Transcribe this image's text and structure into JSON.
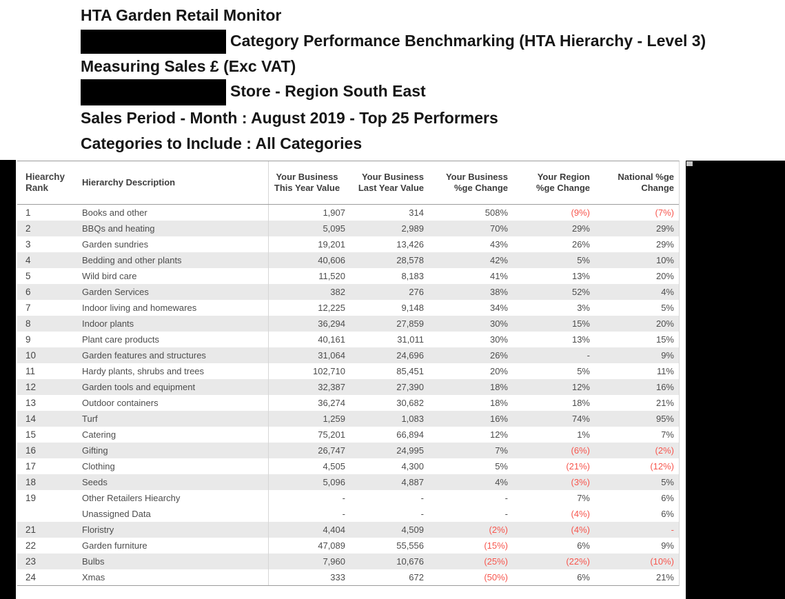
{
  "titles": {
    "line1": "HTA Garden Retail Monitor",
    "line2_text": "Category Performance Benchmarking (HTA Hierarchy - Level 3)",
    "line3": "Measuring Sales £ (Exc VAT)",
    "line4_text": "Store - Region South East",
    "line5": "Sales Period - Month : August 2019 - Top 25 Performers",
    "line6": "Categories to Include : All Categories"
  },
  "colors": {
    "negative_text": "#f7564e",
    "row_stripe": "#e9e9e9",
    "body_text": "#4d4d4d",
    "header_text": "#3d3d3d"
  },
  "table": {
    "columns": [
      {
        "l1": "Hiearchy",
        "l2": "Rank"
      },
      {
        "l1": "Hierarchy Description",
        "l2": ""
      },
      {
        "l1": "Your Business",
        "l2": "This Year Value"
      },
      {
        "l1": "Your Business",
        "l2": "Last Year Value"
      },
      {
        "l1": "Your Business",
        "l2": "%ge Change"
      },
      {
        "l1": "Your Region",
        "l2": "%ge Change"
      },
      {
        "l1": "National %ge",
        "l2": "Change"
      }
    ],
    "rows": [
      {
        "rank": "1",
        "desc": "Books and other",
        "shaded": false,
        "cells": [
          {
            "v": "1,907"
          },
          {
            "v": "314"
          },
          {
            "v": "508%"
          },
          {
            "v": "(9%)",
            "red": true
          },
          {
            "v": "(7%)",
            "red": true
          }
        ]
      },
      {
        "rank": "2",
        "desc": "BBQs and heating",
        "shaded": true,
        "cells": [
          {
            "v": "5,095"
          },
          {
            "v": "2,989"
          },
          {
            "v": "70%"
          },
          {
            "v": "29%"
          },
          {
            "v": "29%"
          }
        ]
      },
      {
        "rank": "3",
        "desc": "Garden sundries",
        "shaded": false,
        "cells": [
          {
            "v": "19,201"
          },
          {
            "v": "13,426"
          },
          {
            "v": "43%"
          },
          {
            "v": "26%"
          },
          {
            "v": "29%"
          }
        ]
      },
      {
        "rank": "4",
        "desc": "Bedding and other plants",
        "shaded": true,
        "cells": [
          {
            "v": "40,606"
          },
          {
            "v": "28,578"
          },
          {
            "v": "42%"
          },
          {
            "v": "5%"
          },
          {
            "v": "10%"
          }
        ]
      },
      {
        "rank": "5",
        "desc": "Wild bird care",
        "shaded": false,
        "cells": [
          {
            "v": "11,520"
          },
          {
            "v": "8,183"
          },
          {
            "v": "41%"
          },
          {
            "v": "13%"
          },
          {
            "v": "20%"
          }
        ]
      },
      {
        "rank": "6",
        "desc": "Garden Services",
        "shaded": true,
        "cells": [
          {
            "v": "382"
          },
          {
            "v": "276"
          },
          {
            "v": "38%"
          },
          {
            "v": "52%"
          },
          {
            "v": "4%"
          }
        ]
      },
      {
        "rank": "7",
        "desc": "Indoor living and homewares",
        "shaded": false,
        "cells": [
          {
            "v": "12,225"
          },
          {
            "v": "9,148"
          },
          {
            "v": "34%"
          },
          {
            "v": "3%"
          },
          {
            "v": "5%"
          }
        ]
      },
      {
        "rank": "8",
        "desc": "Indoor plants",
        "shaded": true,
        "cells": [
          {
            "v": "36,294"
          },
          {
            "v": "27,859"
          },
          {
            "v": "30%"
          },
          {
            "v": "15%"
          },
          {
            "v": "20%"
          }
        ]
      },
      {
        "rank": "9",
        "desc": "Plant care products",
        "shaded": false,
        "cells": [
          {
            "v": "40,161"
          },
          {
            "v": "31,011"
          },
          {
            "v": "30%"
          },
          {
            "v": "13%"
          },
          {
            "v": "15%"
          }
        ]
      },
      {
        "rank": "10",
        "desc": "Garden features and structures",
        "shaded": true,
        "cells": [
          {
            "v": "31,064"
          },
          {
            "v": "24,696"
          },
          {
            "v": "26%"
          },
          {
            "v": "-"
          },
          {
            "v": "9%"
          }
        ]
      },
      {
        "rank": "11",
        "desc": "Hardy plants, shrubs and trees",
        "shaded": false,
        "cells": [
          {
            "v": "102,710"
          },
          {
            "v": "85,451"
          },
          {
            "v": "20%"
          },
          {
            "v": "5%"
          },
          {
            "v": "11%"
          }
        ]
      },
      {
        "rank": "12",
        "desc": "Garden tools and equipment",
        "shaded": true,
        "cells": [
          {
            "v": "32,387"
          },
          {
            "v": "27,390"
          },
          {
            "v": "18%"
          },
          {
            "v": "12%"
          },
          {
            "v": "16%"
          }
        ]
      },
      {
        "rank": "13",
        "desc": "Outdoor containers",
        "shaded": false,
        "cells": [
          {
            "v": "36,274"
          },
          {
            "v": "30,682"
          },
          {
            "v": "18%"
          },
          {
            "v": "18%"
          },
          {
            "v": "21%"
          }
        ]
      },
      {
        "rank": "14",
        "desc": "Turf",
        "shaded": true,
        "cells": [
          {
            "v": "1,259"
          },
          {
            "v": "1,083"
          },
          {
            "v": "16%"
          },
          {
            "v": "74%"
          },
          {
            "v": "95%"
          }
        ]
      },
      {
        "rank": "15",
        "desc": "Catering",
        "shaded": false,
        "cells": [
          {
            "v": "75,201"
          },
          {
            "v": "66,894"
          },
          {
            "v": "12%"
          },
          {
            "v": "1%"
          },
          {
            "v": "7%"
          }
        ]
      },
      {
        "rank": "16",
        "desc": "Gifting",
        "shaded": true,
        "cells": [
          {
            "v": "26,747"
          },
          {
            "v": "24,995"
          },
          {
            "v": "7%"
          },
          {
            "v": "(6%)",
            "red": true
          },
          {
            "v": "(2%)",
            "red": true
          }
        ]
      },
      {
        "rank": "17",
        "desc": "Clothing",
        "shaded": false,
        "cells": [
          {
            "v": "4,505"
          },
          {
            "v": "4,300"
          },
          {
            "v": "5%"
          },
          {
            "v": "(21%)",
            "red": true
          },
          {
            "v": "(12%)",
            "red": true
          }
        ]
      },
      {
        "rank": "18",
        "desc": "Seeds",
        "shaded": true,
        "cells": [
          {
            "v": "5,096"
          },
          {
            "v": "4,887"
          },
          {
            "v": "4%"
          },
          {
            "v": "(3%)",
            "red": true
          },
          {
            "v": "5%"
          }
        ]
      },
      {
        "rank": "19",
        "desc": "Other Retailers Hiearchy",
        "shaded": false,
        "cells": [
          {
            "v": "-"
          },
          {
            "v": "-"
          },
          {
            "v": "-"
          },
          {
            "v": "7%"
          },
          {
            "v": "6%"
          }
        ]
      },
      {
        "rank": "",
        "desc": "Unassigned Data",
        "shaded": false,
        "cells": [
          {
            "v": "-"
          },
          {
            "v": "-"
          },
          {
            "v": "-"
          },
          {
            "v": "(4%)",
            "red": true
          },
          {
            "v": "6%"
          }
        ]
      },
      {
        "rank": "21",
        "desc": "Floristry",
        "shaded": true,
        "cells": [
          {
            "v": "4,404"
          },
          {
            "v": "4,509"
          },
          {
            "v": "(2%)",
            "red": true
          },
          {
            "v": "(4%)",
            "red": true
          },
          {
            "v": "-",
            "red": true
          }
        ]
      },
      {
        "rank": "22",
        "desc": "Garden furniture",
        "shaded": false,
        "cells": [
          {
            "v": "47,089"
          },
          {
            "v": "55,556"
          },
          {
            "v": "(15%)",
            "red": true
          },
          {
            "v": "6%"
          },
          {
            "v": "9%"
          }
        ]
      },
      {
        "rank": "23",
        "desc": "Bulbs",
        "shaded": true,
        "cells": [
          {
            "v": "7,960"
          },
          {
            "v": "10,676"
          },
          {
            "v": "(25%)",
            "red": true
          },
          {
            "v": "(22%)",
            "red": true
          },
          {
            "v": "(10%)",
            "red": true
          }
        ]
      },
      {
        "rank": "24",
        "desc": "Xmas",
        "shaded": false,
        "cells": [
          {
            "v": "333"
          },
          {
            "v": "672"
          },
          {
            "v": "(50%)",
            "red": true
          },
          {
            "v": "6%"
          },
          {
            "v": "21%"
          }
        ]
      }
    ]
  }
}
